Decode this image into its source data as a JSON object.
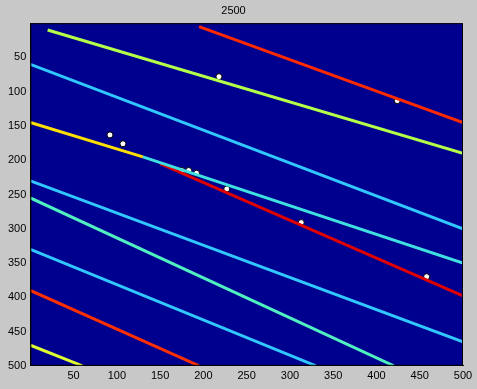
{
  "chart_data": {
    "type": "scatter",
    "title": "2500",
    "xlim": [
      0,
      500
    ],
    "ylim": [
      0,
      500
    ],
    "xticks": [
      50,
      100,
      150,
      200,
      250,
      300,
      350,
      400,
      450,
      500
    ],
    "yticks": [
      50,
      100,
      150,
      200,
      250,
      300,
      350,
      400,
      450,
      500
    ],
    "grid": false,
    "series": [
      {
        "type": "line",
        "color": "#ff2a00",
        "x": [
          195,
          500
        ],
        "values": [
          5,
          145
        ]
      },
      {
        "type": "line",
        "color": "#b4ff48",
        "x": [
          20,
          500
        ],
        "values": [
          10,
          190
        ]
      },
      {
        "type": "line",
        "color": "#ffe000",
        "x": [
          0,
          130
        ],
        "values": [
          145,
          195
        ]
      },
      {
        "type": "line",
        "color": "#40e0e0",
        "x": [
          130,
          500
        ],
        "values": [
          195,
          350
        ]
      },
      {
        "type": "line",
        "color": "#e00000",
        "x": [
          150,
          500
        ],
        "values": [
          205,
          398
        ]
      },
      {
        "type": "line",
        "color": "#ff3000",
        "x": [
          0,
          195
        ],
        "values": [
          390,
          500
        ]
      },
      {
        "type": "line",
        "color": "#30c8ff",
        "x": [
          0,
          500
        ],
        "values": [
          60,
          300
        ]
      },
      {
        "type": "line",
        "color": "#30c8ff",
        "x": [
          0,
          500
        ],
        "values": [
          230,
          465
        ]
      },
      {
        "type": "line",
        "color": "#50f0c0",
        "x": [
          0,
          420
        ],
        "values": [
          255,
          500
        ]
      },
      {
        "type": "line",
        "color": "#30c8ff",
        "x": [
          0,
          330
        ],
        "values": [
          330,
          500
        ]
      },
      {
        "type": "line",
        "color": "#e0ff30",
        "x": [
          0,
          60
        ],
        "values": [
          470,
          500
        ]
      },
      {
        "type": "scatter",
        "color": "#ffffff",
        "marker": "circle",
        "x": [
          218,
          424,
          92,
          107,
          175,
          183,
          192,
          227,
          313,
          458
        ],
        "values": [
          78,
          113,
          163,
          176,
          215,
          215,
          219,
          242,
          291,
          370
        ]
      }
    ]
  }
}
